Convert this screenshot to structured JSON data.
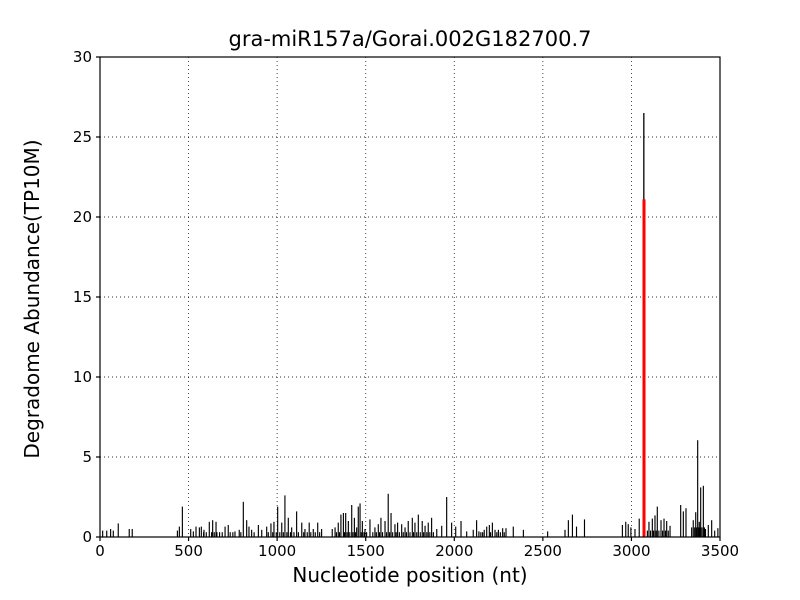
{
  "figure": {
    "background": "#ffffff"
  },
  "chart_data": {
    "type": "bar",
    "title": "gra-miR157a/Gorai.002G182700.7",
    "xlabel": "Nucleotide position (nt)",
    "ylabel": "Degradome Abundance(TP10M)",
    "xlim": [
      0,
      3500
    ],
    "ylim": [
      0,
      30
    ],
    "xticks": [
      0,
      500,
      1000,
      1500,
      2000,
      2500,
      3000,
      3500
    ],
    "yticks": [
      0,
      5,
      10,
      15,
      20,
      25,
      30
    ],
    "grid_style": "dotted",
    "legend": "none",
    "bar_color": "#000000",
    "target_color": "#ff0000",
    "axis_color": "#000000",
    "target": {
      "position": 3071,
      "value": 21.1
    },
    "peak": {
      "position": 3070,
      "value": 26.5
    },
    "spikes": [
      [
        15,
        0.4
      ],
      [
        38,
        0.4
      ],
      [
        60,
        0.5
      ],
      [
        75,
        0.4
      ],
      [
        103,
        0.85
      ],
      [
        165,
        0.5
      ],
      [
        182,
        0.5
      ],
      [
        437,
        0.4
      ],
      [
        448,
        0.65
      ],
      [
        465,
        1.9
      ],
      [
        512,
        0.5
      ],
      [
        527,
        0.35
      ],
      [
        542,
        0.65
      ],
      [
        561,
        0.6
      ],
      [
        572,
        0.65
      ],
      [
        585,
        0.3
      ],
      [
        587,
        0.45
      ],
      [
        600,
        0.3
      ],
      [
        617,
        0.95
      ],
      [
        630,
        0.3
      ],
      [
        636,
        1.05
      ],
      [
        645,
        0.3
      ],
      [
        655,
        0.95
      ],
      [
        660,
        0.3
      ],
      [
        675,
        0.3
      ],
      [
        690,
        0.3
      ],
      [
        706,
        0.65
      ],
      [
        724,
        0.75
      ],
      [
        735,
        0.3
      ],
      [
        750,
        0.3
      ],
      [
        762,
        0.35
      ],
      [
        786,
        0.45
      ],
      [
        795,
        0.3
      ],
      [
        809,
        2.2
      ],
      [
        828,
        1.05
      ],
      [
        841,
        0.65
      ],
      [
        856,
        0.45
      ],
      [
        870,
        0.3
      ],
      [
        894,
        0.75
      ],
      [
        913,
        0.45
      ],
      [
        941,
        0.65
      ],
      [
        950,
        0.3
      ],
      [
        965,
        0.85
      ],
      [
        975,
        0.3
      ],
      [
        982,
        0.95
      ],
      [
        995,
        0.3
      ],
      [
        1003,
        1.9
      ],
      [
        1015,
        0.3
      ],
      [
        1026,
        0.9
      ],
      [
        1035,
        0.3
      ],
      [
        1044,
        2.6
      ],
      [
        1055,
        0.3
      ],
      [
        1063,
        1.2
      ],
      [
        1075,
        0.3
      ],
      [
        1082,
        0.6
      ],
      [
        1095,
        0.3
      ],
      [
        1110,
        1.6
      ],
      [
        1120,
        0.3
      ],
      [
        1139,
        0.9
      ],
      [
        1150,
        0.3
      ],
      [
        1157,
        0.5
      ],
      [
        1170,
        0.3
      ],
      [
        1181,
        0.9
      ],
      [
        1190,
        0.3
      ],
      [
        1204,
        0.5
      ],
      [
        1215,
        0.3
      ],
      [
        1229,
        0.9
      ],
      [
        1240,
        0.3
      ],
      [
        1251,
        0.5
      ],
      [
        1311,
        0.5
      ],
      [
        1327,
        0.6
      ],
      [
        1335,
        0.3
      ],
      [
        1345,
        0.9
      ],
      [
        1352,
        0.3
      ],
      [
        1360,
        1.4
      ],
      [
        1374,
        1.5
      ],
      [
        1380,
        0.3
      ],
      [
        1387,
        1.5
      ],
      [
        1395,
        0.3
      ],
      [
        1402,
        1.0
      ],
      [
        1410,
        0.3
      ],
      [
        1421,
        2.0
      ],
      [
        1428,
        0.3
      ],
      [
        1436,
        1.2
      ],
      [
        1443,
        0.3
      ],
      [
        1449,
        0.6
      ],
      [
        1458,
        1.9
      ],
      [
        1468,
        2.1
      ],
      [
        1475,
        0.3
      ],
      [
        1481,
        1.0
      ],
      [
        1490,
        0.3
      ],
      [
        1496,
        0.5
      ],
      [
        1505,
        0.3
      ],
      [
        1524,
        1.1
      ],
      [
        1540,
        0.3
      ],
      [
        1552,
        0.6
      ],
      [
        1560,
        0.3
      ],
      [
        1571,
        0.8
      ],
      [
        1578,
        0.3
      ],
      [
        1586,
        1.2
      ],
      [
        1595,
        0.3
      ],
      [
        1609,
        1.0
      ],
      [
        1618,
        0.3
      ],
      [
        1627,
        2.7
      ],
      [
        1635,
        0.3
      ],
      [
        1643,
        1.5
      ],
      [
        1652,
        0.3
      ],
      [
        1665,
        0.8
      ],
      [
        1672,
        0.3
      ],
      [
        1680,
        0.9
      ],
      [
        1690,
        0.3
      ],
      [
        1703,
        0.8
      ],
      [
        1712,
        0.3
      ],
      [
        1722,
        0.6
      ],
      [
        1730,
        0.3
      ],
      [
        1740,
        1.0
      ],
      [
        1750,
        0.3
      ],
      [
        1763,
        1.2
      ],
      [
        1770,
        0.3
      ],
      [
        1778,
        0.9
      ],
      [
        1788,
        0.3
      ],
      [
        1797,
        1.4
      ],
      [
        1808,
        0.3
      ],
      [
        1819,
        1.0
      ],
      [
        1827,
        0.3
      ],
      [
        1835,
        0.7
      ],
      [
        1845,
        0.3
      ],
      [
        1853,
        0.9
      ],
      [
        1862,
        0.3
      ],
      [
        1872,
        1.2
      ],
      [
        1882,
        0.3
      ],
      [
        1901,
        0.5
      ],
      [
        1929,
        0.7
      ],
      [
        1957,
        2.5
      ],
      [
        1985,
        0.9
      ],
      [
        2008,
        0.65
      ],
      [
        2038,
        1.0
      ],
      [
        2070,
        0.35
      ],
      [
        2107,
        0.45
      ],
      [
        2126,
        1.05
      ],
      [
        2139,
        0.35
      ],
      [
        2150,
        0.3
      ],
      [
        2160,
        0.3
      ],
      [
        2169,
        0.45
      ],
      [
        2183,
        0.65
      ],
      [
        2198,
        0.75
      ],
      [
        2205,
        0.3
      ],
      [
        2215,
        0.9
      ],
      [
        2230,
        0.45
      ],
      [
        2240,
        0.3
      ],
      [
        2249,
        0.45
      ],
      [
        2260,
        0.3
      ],
      [
        2273,
        0.55
      ],
      [
        2282,
        0.3
      ],
      [
        2292,
        0.55
      ],
      [
        2333,
        0.65
      ],
      [
        2390,
        0.45
      ],
      [
        2527,
        0.35
      ],
      [
        2625,
        0.45
      ],
      [
        2644,
        1.05
      ],
      [
        2667,
        1.4
      ],
      [
        2690,
        0.65
      ],
      [
        2735,
        1.1
      ],
      [
        2949,
        0.75
      ],
      [
        2968,
        0.95
      ],
      [
        2982,
        0.8
      ],
      [
        2997,
        0.6
      ],
      [
        3020,
        0.5
      ],
      [
        3044,
        1.15
      ],
      [
        3090,
        0.4
      ],
      [
        3099,
        0.95
      ],
      [
        3108,
        0.4
      ],
      [
        3118,
        1.15
      ],
      [
        3125,
        0.4
      ],
      [
        3133,
        1.35
      ],
      [
        3140,
        0.4
      ],
      [
        3146,
        1.9
      ],
      [
        3155,
        0.4
      ],
      [
        3167,
        1.05
      ],
      [
        3176,
        0.4
      ],
      [
        3184,
        1.15
      ],
      [
        3192,
        0.4
      ],
      [
        3199,
        1.0
      ],
      [
        3208,
        0.4
      ],
      [
        3218,
        0.7
      ],
      [
        3278,
        2.0
      ],
      [
        3293,
        1.6
      ],
      [
        3308,
        1.8
      ],
      [
        3340,
        0.6
      ],
      [
        3349,
        1.05
      ],
      [
        3357,
        0.6
      ],
      [
        3363,
        1.55
      ],
      [
        3368,
        0.6
      ],
      [
        3374,
        6.05
      ],
      [
        3378,
        0.6
      ],
      [
        3383,
        0.95
      ],
      [
        3386,
        0.6
      ],
      [
        3391,
        3.1
      ],
      [
        3398,
        0.6
      ],
      [
        3406,
        3.2
      ],
      [
        3412,
        0.6
      ],
      [
        3418,
        0.5
      ],
      [
        3434,
        0.75
      ],
      [
        3453,
        1.05
      ],
      [
        3470,
        0.4
      ],
      [
        3488,
        0.55
      ]
    ]
  }
}
